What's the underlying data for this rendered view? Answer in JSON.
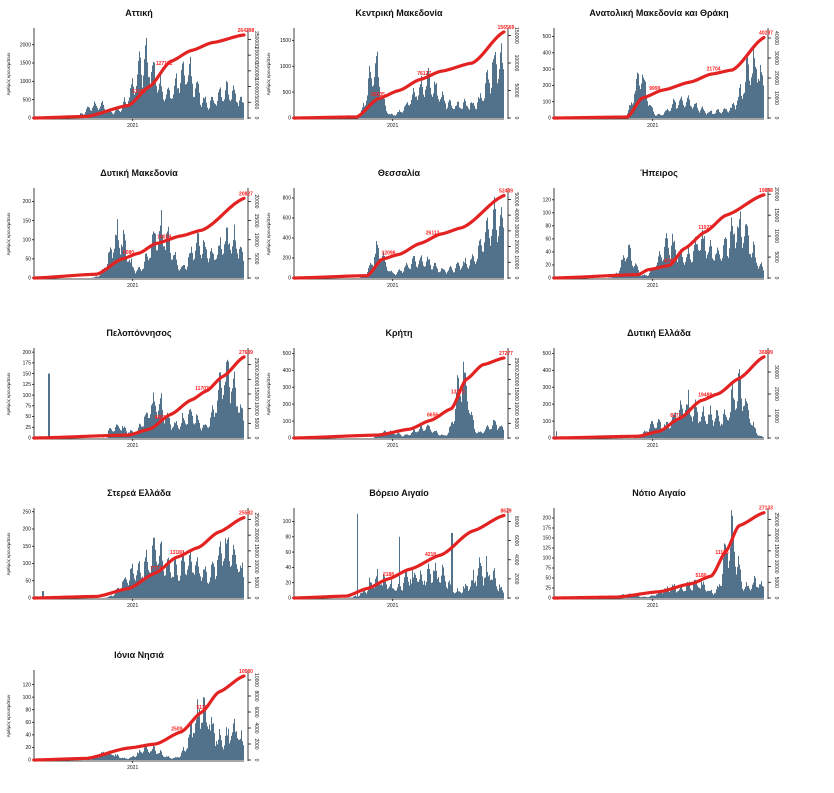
{
  "figure": {
    "bar_color": "#4a6b87",
    "line_color": "#e32222",
    "annotation_color": "#ff2020",
    "ylabel": "Αριθμός κρουσμάτων",
    "xlabel_tick": "2021"
  },
  "chart_data": [
    {
      "type": "bar",
      "title": "Αττική",
      "xtick": "2021",
      "ylabel": "Αριθμός κρουσμάτων",
      "left_ticks": [
        "0",
        "500",
        "1000",
        "1500",
        "2000"
      ],
      "left_max": 2400,
      "right_ticks": [
        "0",
        "50000",
        "100000",
        "150000",
        "200000",
        "250000"
      ],
      "right_max": 280000,
      "bar_seed": 1,
      "start": 0.2,
      "waves": [
        [
          0.3,
          0.05,
          450
        ],
        [
          0.53,
          0.06,
          2000
        ],
        [
          0.72,
          0.05,
          1600
        ],
        [
          0.92,
          0.07,
          900
        ]
      ],
      "noise": 0.3,
      "cum": [
        [
          0,
          0
        ],
        [
          0.25,
          5000
        ],
        [
          0.45,
          40000
        ],
        [
          0.55,
          100000
        ],
        [
          0.65,
          180000
        ],
        [
          0.75,
          215000
        ],
        [
          0.85,
          240000
        ],
        [
          1.0,
          264298
        ]
      ],
      "annotations": [
        {
          "text": "51181",
          "pos": 0.5
        },
        {
          "text": "127122",
          "pos": 0.62
        },
        {
          "text": "264298",
          "pos": 1.0
        }
      ]
    },
    {
      "type": "bar",
      "title": "Κεντρική Μακεδονία",
      "xtick": "2021",
      "ylabel": "Αριθμός κρουσμάτων",
      "left_ticks": [
        "0",
        "500",
        "1000",
        "1500"
      ],
      "left_max": 1700,
      "right_ticks": [
        "0",
        "50000",
        "100000",
        "150000"
      ],
      "right_max": 160000,
      "bar_seed": 2,
      "start": 0.25,
      "waves": [
        [
          0.38,
          0.03,
          1300
        ],
        [
          0.63,
          0.07,
          850
        ],
        [
          0.82,
          0.05,
          300
        ],
        [
          0.97,
          0.05,
          1400
        ]
      ],
      "noise": 0.3,
      "cum": [
        [
          0,
          0
        ],
        [
          0.3,
          2000
        ],
        [
          0.4,
          35000
        ],
        [
          0.5,
          50000
        ],
        [
          0.6,
          70000
        ],
        [
          0.7,
          85000
        ],
        [
          0.85,
          100000
        ],
        [
          1.0,
          156569
        ]
      ],
      "annotations": [
        {
          "text": "35335",
          "pos": 0.4
        },
        {
          "text": "76127",
          "pos": 0.62
        },
        {
          "text": "156569",
          "pos": 1.0
        }
      ]
    },
    {
      "type": "bar",
      "title": "Ανατολική Μακεδονία και Θράκη",
      "xtick": "2021",
      "ylabel": "",
      "left_ticks": [
        "0",
        "100",
        "200",
        "300",
        "400",
        "500"
      ],
      "left_max": 540,
      "right_ticks": [
        "0",
        "10000",
        "20000",
        "30000",
        "40000"
      ],
      "right_max": 44000,
      "bar_seed": 3,
      "start": 0.25,
      "waves": [
        [
          0.41,
          0.03,
          330
        ],
        [
          0.62,
          0.06,
          150
        ],
        [
          0.8,
          0.05,
          50
        ],
        [
          0.95,
          0.05,
          430
        ]
      ],
      "noise": 0.35,
      "cum": [
        [
          0,
          0
        ],
        [
          0.35,
          500
        ],
        [
          0.42,
          10000
        ],
        [
          0.52,
          14000
        ],
        [
          0.65,
          18000
        ],
        [
          0.75,
          22000
        ],
        [
          0.85,
          24000
        ],
        [
          1.0,
          40237
        ]
      ],
      "annotations": [
        {
          "text": "9999",
          "pos": 0.48
        },
        {
          "text": "21704",
          "pos": 0.76
        },
        {
          "text": "40237",
          "pos": 1.0
        }
      ]
    },
    {
      "type": "bar",
      "title": "Δυτική Μακεδονία",
      "xtick": "2021",
      "ylabel": "Αριθμός κρουσμάτων",
      "left_ticks": [
        "0",
        "50",
        "100",
        "150",
        "200"
      ],
      "left_max": 230,
      "right_ticks": [
        "0",
        "5000",
        "10000",
        "15000",
        "20000"
      ],
      "right_max": 23000,
      "bar_seed": 4,
      "start": 0.2,
      "waves": [
        [
          0.4,
          0.04,
          140
        ],
        [
          0.6,
          0.05,
          160
        ],
        [
          0.78,
          0.04,
          110
        ],
        [
          0.93,
          0.06,
          130
        ]
      ],
      "noise": 0.35,
      "cum": [
        [
          0,
          0
        ],
        [
          0.3,
          1000
        ],
        [
          0.42,
          5000
        ],
        [
          0.5,
          6500
        ],
        [
          0.58,
          9000
        ],
        [
          0.7,
          11000
        ],
        [
          0.8,
          12500
        ],
        [
          1.0,
          20827
        ]
      ],
      "annotations": [
        {
          "text": "6080",
          "pos": 0.45
        },
        {
          "text": "10029",
          "pos": 0.62
        },
        {
          "text": "20827",
          "pos": 1.0
        }
      ]
    },
    {
      "type": "bar",
      "title": "Θεσσαλία",
      "xtick": "2021",
      "ylabel": "Αριθμός κρουσμάτων",
      "left_ticks": [
        "0",
        "200",
        "400",
        "600",
        "800"
      ],
      "left_max": 880,
      "right_ticks": [
        "0",
        "10000",
        "20000",
        "30000",
        "40000",
        "50000"
      ],
      "right_max": 56000,
      "bar_seed": 5,
      "start": 0.25,
      "waves": [
        [
          0.4,
          0.03,
          360
        ],
        [
          0.6,
          0.07,
          230
        ],
        [
          0.8,
          0.05,
          150
        ],
        [
          0.96,
          0.06,
          750
        ]
      ],
      "noise": 0.3,
      "cum": [
        [
          0,
          0
        ],
        [
          0.35,
          1500
        ],
        [
          0.42,
          12000
        ],
        [
          0.5,
          15000
        ],
        [
          0.6,
          22000
        ],
        [
          0.7,
          28000
        ],
        [
          0.8,
          32000
        ],
        [
          1.0,
          52489
        ]
      ],
      "annotations": [
        {
          "text": "12098",
          "pos": 0.45
        },
        {
          "text": "26113",
          "pos": 0.66
        },
        {
          "text": "52489",
          "pos": 1.0
        }
      ]
    },
    {
      "type": "bar",
      "title": "Ήπειρος",
      "xtick": "2021",
      "ylabel": "",
      "left_ticks": [
        "0",
        "20",
        "40",
        "60",
        "80",
        "100",
        "120"
      ],
      "left_max": 135,
      "right_ticks": [
        "0",
        "5000",
        "10000",
        "15000",
        "20000"
      ],
      "right_max": 21000,
      "bar_seed": 6,
      "start": 0.25,
      "waves": [
        [
          0.35,
          0.03,
          50
        ],
        [
          0.55,
          0.05,
          65
        ],
        [
          0.7,
          0.05,
          70
        ],
        [
          0.88,
          0.06,
          100
        ]
      ],
      "noise": 0.35,
      "cum": [
        [
          0,
          0
        ],
        [
          0.4,
          800
        ],
        [
          0.45,
          2000
        ],
        [
          0.55,
          3000
        ],
        [
          0.62,
          7000
        ],
        [
          0.72,
          11000
        ],
        [
          0.82,
          15000
        ],
        [
          1.0,
          19848
        ]
      ],
      "annotations": [
        {
          "text": "4748",
          "pos": 0.55
        },
        {
          "text": "11023",
          "pos": 0.72
        },
        {
          "text": "19848",
          "pos": 1.0
        }
      ]
    },
    {
      "type": "bar",
      "title": "Πελοπόννησος",
      "xtick": "2021",
      "ylabel": "Αριθμός κρουσμάτων",
      "left_ticks": [
        "0",
        "25",
        "50",
        "75",
        "100",
        "125",
        "150",
        "175",
        "200"
      ],
      "left_max": 205,
      "right_ticks": [
        "0",
        "5000",
        "10000",
        "15000",
        "20000",
        "25000"
      ],
      "right_max": 30000,
      "bar_seed": 7,
      "start": 0.35,
      "waves": [
        [
          0.4,
          0.04,
          35
        ],
        [
          0.58,
          0.05,
          110
        ],
        [
          0.74,
          0.04,
          70
        ],
        [
          0.92,
          0.05,
          190
        ]
      ],
      "noise": 0.35,
      "spike": [
        [
          0.07,
          150
        ]
      ],
      "cum": [
        [
          0,
          0
        ],
        [
          0.45,
          1000
        ],
        [
          0.55,
          3000
        ],
        [
          0.65,
          8000
        ],
        [
          0.75,
          13000
        ],
        [
          0.82,
          16000
        ],
        [
          0.9,
          21000
        ],
        [
          1.0,
          27639
        ]
      ],
      "annotations": [
        {
          "text": "4861",
          "pos": 0.6
        },
        {
          "text": "11707",
          "pos": 0.8
        },
        {
          "text": "27639",
          "pos": 1.0
        }
      ]
    },
    {
      "type": "bar",
      "title": "Κρήτη",
      "xtick": "2021",
      "ylabel": "Αριθμός κρουσμάτων",
      "left_ticks": [
        "0",
        "100",
        "200",
        "300",
        "400",
        "500"
      ],
      "left_max": 520,
      "right_ticks": [
        "0",
        "5000",
        "10000",
        "15000",
        "20000",
        "25000"
      ],
      "right_max": 30000,
      "bar_seed": 8,
      "start": 0.38,
      "waves": [
        [
          0.45,
          0.04,
          45
        ],
        [
          0.62,
          0.05,
          80
        ],
        [
          0.8,
          0.03,
          480
        ],
        [
          0.95,
          0.04,
          110
        ]
      ],
      "noise": 0.35,
      "cum": [
        [
          0,
          0
        ],
        [
          0.4,
          1000
        ],
        [
          0.55,
          3000
        ],
        [
          0.65,
          6000
        ],
        [
          0.75,
          10000
        ],
        [
          0.82,
          20000
        ],
        [
          0.9,
          25000
        ],
        [
          1.0,
          27277
        ]
      ],
      "annotations": [
        {
          "text": "6656",
          "pos": 0.66
        },
        {
          "text": "13173",
          "pos": 0.78
        },
        {
          "text": "27277",
          "pos": 1.0
        }
      ]
    },
    {
      "type": "bar",
      "title": "Δυτική Ελλάδα",
      "xtick": "2021",
      "ylabel": "",
      "left_ticks": [
        "0",
        "100",
        "200",
        "300",
        "400",
        "500"
      ],
      "left_max": 520,
      "right_ticks": [
        "0",
        "10000",
        "20000",
        "30000"
      ],
      "right_max": 40000,
      "bar_seed": 9,
      "start": 0.38,
      "waves": [
        [
          0.48,
          0.04,
          100
        ],
        [
          0.62,
          0.05,
          250
        ],
        [
          0.75,
          0.05,
          160
        ],
        [
          0.88,
          0.04,
          360
        ]
      ],
      "noise": 0.35,
      "spike": [
        [
          0.01,
          40
        ]
      ],
      "cum": [
        [
          0,
          0
        ],
        [
          0.4,
          800
        ],
        [
          0.5,
          3000
        ],
        [
          0.6,
          9000
        ],
        [
          0.7,
          17000
        ],
        [
          0.78,
          20000
        ],
        [
          0.88,
          27000
        ],
        [
          1.0,
          36899
        ]
      ],
      "annotations": [
        {
          "text": "8171",
          "pos": 0.58
        },
        {
          "text": "19489",
          "pos": 0.72
        },
        {
          "text": "36899",
          "pos": 1.0
        }
      ]
    },
    {
      "type": "bar",
      "title": "Στερεά Ελλάδα",
      "xtick": "2021",
      "ylabel": "Αριθμός κρουσμάτων",
      "left_ticks": [
        "0",
        "50",
        "100",
        "150",
        "200",
        "250"
      ],
      "left_max": 255,
      "right_ticks": [
        "0",
        "5000",
        "10000",
        "15000",
        "20000",
        "25000"
      ],
      "right_max": 28000,
      "bar_seed": 10,
      "start": 0.22,
      "waves": [
        [
          0.45,
          0.04,
          70
        ],
        [
          0.58,
          0.06,
          170
        ],
        [
          0.74,
          0.05,
          130
        ],
        [
          0.92,
          0.06,
          190
        ]
      ],
      "noise": 0.35,
      "spike": [
        [
          0.04,
          20
        ]
      ],
      "cum": [
        [
          0,
          0
        ],
        [
          0.3,
          500
        ],
        [
          0.45,
          3000
        ],
        [
          0.58,
          8000
        ],
        [
          0.68,
          13000
        ],
        [
          0.78,
          16000
        ],
        [
          0.88,
          21000
        ],
        [
          1.0,
          25582
        ]
      ],
      "annotations": [
        {
          "text": "7777",
          "pos": 0.58
        },
        {
          "text": "13180",
          "pos": 0.68
        },
        {
          "text": "25582",
          "pos": 1.0
        }
      ]
    },
    {
      "type": "bar",
      "title": "Βόρειο Αιγαίο",
      "xtick": "2021",
      "ylabel": "",
      "left_ticks": [
        "0",
        "20",
        "40",
        "60",
        "80",
        "100"
      ],
      "left_max": 115,
      "right_ticks": [
        "0",
        "2000",
        "4000",
        "6000",
        "8000"
      ],
      "right_max": 9200,
      "bar_seed": 11,
      "start": 0.25,
      "waves": [
        [
          0.4,
          0.05,
          30
        ],
        [
          0.56,
          0.05,
          35
        ],
        [
          0.68,
          0.05,
          40
        ],
        [
          0.9,
          0.06,
          45
        ]
      ],
      "noise": 0.6,
      "spike": [
        [
          0.3,
          110
        ],
        [
          0.5,
          80
        ],
        [
          0.75,
          85
        ]
      ],
      "cum": [
        [
          0,
          0
        ],
        [
          0.25,
          200
        ],
        [
          0.35,
          1000
        ],
        [
          0.45,
          2000
        ],
        [
          0.55,
          3000
        ],
        [
          0.7,
          4500
        ],
        [
          0.85,
          7000
        ],
        [
          1.0,
          8629
        ]
      ],
      "annotations": [
        {
          "text": "2188",
          "pos": 0.45
        },
        {
          "text": "4218",
          "pos": 0.65
        },
        {
          "text": "8629",
          "pos": 1.0
        }
      ]
    },
    {
      "type": "bar",
      "title": "Νότιο Αιγαίο",
      "xtick": "2021",
      "ylabel": "",
      "left_ticks": [
        "0",
        "25",
        "50",
        "75",
        "100",
        "125",
        "150",
        "175",
        "200"
      ],
      "left_max": 220,
      "right_ticks": [
        "0",
        "5000",
        "10000",
        "15000",
        "20000",
        "25000"
      ],
      "right_max": 28000,
      "bar_seed": 12,
      "start": 0.25,
      "waves": [
        [
          0.35,
          0.04,
          12
        ],
        [
          0.55,
          0.05,
          30
        ],
        [
          0.68,
          0.05,
          45
        ],
        [
          0.84,
          0.03,
          200
        ],
        [
          0.96,
          0.04,
          50
        ]
      ],
      "noise": 0.4,
      "cum": [
        [
          0,
          0
        ],
        [
          0.3,
          300
        ],
        [
          0.5,
          2000
        ],
        [
          0.65,
          4500
        ],
        [
          0.75,
          7000
        ],
        [
          0.82,
          15000
        ],
        [
          0.88,
          23000
        ],
        [
          1.0,
          27133
        ]
      ],
      "annotations": [
        {
          "text": "5180",
          "pos": 0.7
        },
        {
          "text": "11106",
          "pos": 0.8
        },
        {
          "text": "27133",
          "pos": 1.0
        }
      ]
    },
    {
      "type": "bar",
      "title": "Ιόνια Νησιά",
      "xtick": "2021",
      "ylabel": "Αριθμός κρουσμάτων",
      "left_ticks": [
        "0",
        "20",
        "40",
        "60",
        "80",
        "100",
        "120"
      ],
      "left_max": 140,
      "right_ticks": [
        "0",
        "2000",
        "4000",
        "6000",
        "8000",
        "10000"
      ],
      "right_max": 11000,
      "bar_seed": 13,
      "start": 0.2,
      "waves": [
        [
          0.35,
          0.04,
          15
        ],
        [
          0.55,
          0.05,
          25
        ],
        [
          0.8,
          0.05,
          100
        ],
        [
          0.95,
          0.04,
          60
        ]
      ],
      "noise": 0.45,
      "cum": [
        [
          0,
          0
        ],
        [
          0.25,
          200
        ],
        [
          0.45,
          1500
        ],
        [
          0.58,
          2000
        ],
        [
          0.7,
          3500
        ],
        [
          0.8,
          6000
        ],
        [
          0.88,
          8500
        ],
        [
          1.0,
          10500
        ]
      ],
      "annotations": [
        {
          "text": "2509",
          "pos": 0.68
        },
        {
          "text": "5130",
          "pos": 0.8
        },
        {
          "text": "10500",
          "pos": 1.0
        }
      ]
    }
  ]
}
